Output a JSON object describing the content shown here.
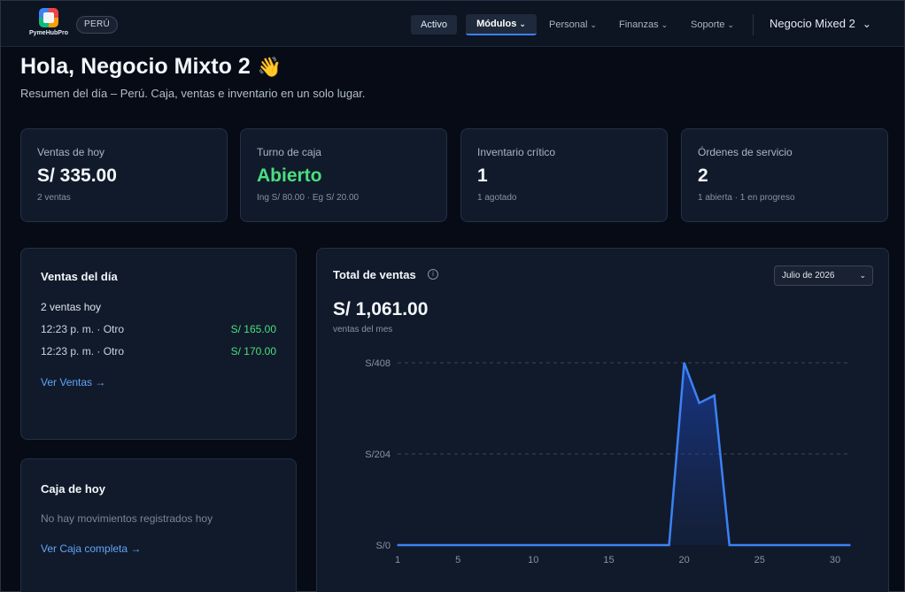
{
  "header": {
    "logo_text": "PymeHubPro",
    "country": "PERÚ",
    "nav": {
      "activo": "Activo",
      "modulos": "Módulos",
      "personal": "Personal",
      "finanzas": "Finanzas",
      "soporte": "Soporte"
    },
    "business": "Negocio Mixed 2"
  },
  "greeting": {
    "title": "Hola, Negocio Mixto 2",
    "emoji": "👋",
    "subtitle": "Resumen del día – Perú. Caja, ventas e inventario en un solo lugar."
  },
  "stats": [
    {
      "label": "Ventas de hoy",
      "value": "S/ 335.00",
      "sub": "2 ventas"
    },
    {
      "label": "Turno de caja",
      "value": "Abierto",
      "sub": "Ing S/ 80.00 · Eg S/ 20.00"
    },
    {
      "label": "Inventario crítico",
      "value": "1",
      "sub": "1 agotado"
    },
    {
      "label": "Órdenes de servicio",
      "value": "2",
      "sub": "1 abierta · 1 en progreso"
    }
  ],
  "sales_panel": {
    "title": "Ventas del día",
    "count": "2 ventas hoy",
    "rows": [
      {
        "time": "12:23 p. m. · Otro",
        "amount": "S/ 165.00"
      },
      {
        "time": "12:23 p. m. · Otro",
        "amount": "S/ 170.00"
      }
    ],
    "link": "Ver Ventas →"
  },
  "cash_panel": {
    "title": "Caja de hoy",
    "empty": "No hay movimientos registrados hoy",
    "link": "Ver Caja completa →"
  },
  "chart_panel": {
    "title": "Total de ventas",
    "info_icon": "info-icon",
    "month": "Julio de 2026",
    "total": "S/ 1,061.00",
    "subtitle": "ventas del mes"
  },
  "colors": {
    "accent": "#3b82f6",
    "positive": "#4ade80",
    "link": "#60a5fa"
  },
  "chart_data": {
    "type": "area",
    "x": [
      1,
      2,
      3,
      4,
      5,
      6,
      7,
      8,
      9,
      10,
      11,
      12,
      13,
      14,
      15,
      16,
      17,
      18,
      19,
      20,
      21,
      22,
      23,
      24,
      25,
      26,
      27,
      28,
      29,
      30,
      31
    ],
    "series": [
      {
        "values": [
          0,
          0,
          0,
          0,
          0,
          0,
          0,
          0,
          0,
          0,
          0,
          0,
          0,
          0,
          0,
          0,
          0,
          0,
          0,
          408,
          318,
          335,
          0,
          0,
          0,
          0,
          0,
          0,
          0,
          0,
          0
        ]
      }
    ],
    "y_ticks": [
      "S/0",
      "S/204",
      "S/408"
    ],
    "x_ticks": [
      1,
      5,
      10,
      15,
      20,
      25,
      30
    ],
    "ylim": [
      0,
      408
    ],
    "xlim": [
      1,
      31
    ],
    "grid": true
  }
}
